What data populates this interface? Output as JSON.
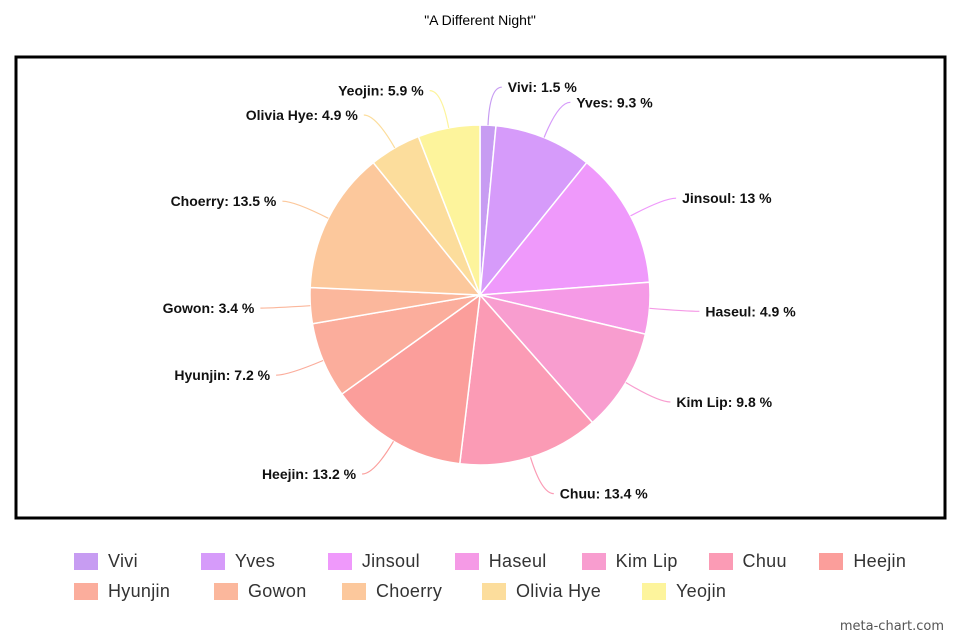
{
  "chart_data": {
    "type": "pie",
    "title": "\"A Different Night\"",
    "slices": [
      {
        "label": "Vivi",
        "value": 1.5,
        "color": "#c79cf2",
        "display": "Vivi: 1.5 %"
      },
      {
        "label": "Yves",
        "value": 9.3,
        "color": "#d69bfa",
        "display": "Yves: 9.3 %"
      },
      {
        "label": "Jinsoul",
        "value": 13,
        "color": "#ef99fb",
        "display": "Jinsoul: 13 %"
      },
      {
        "label": "Haseul",
        "value": 4.9,
        "color": "#f59ae6",
        "display": "Haseul: 4.9 %"
      },
      {
        "label": "Kim Lip",
        "value": 9.8,
        "color": "#f89dcf",
        "display": "Kim Lip: 9.8 %"
      },
      {
        "label": "Chuu",
        "value": 13.4,
        "color": "#fb9bb5",
        "display": "Chuu: 13.4 %"
      },
      {
        "label": "Heejin",
        "value": 13.2,
        "color": "#fb9e9b",
        "display": "Heejin: 13.2 %"
      },
      {
        "label": "Hyunjin",
        "value": 7.2,
        "color": "#fbad9c",
        "display": "Hyunjin: 7.2 %"
      },
      {
        "label": "Gowon",
        "value": 3.4,
        "color": "#fbb79c",
        "display": "Gowon: 3.4 %"
      },
      {
        "label": "Choerry",
        "value": 13.5,
        "color": "#fcc89c",
        "display": "Choerry: 13.5 %"
      },
      {
        "label": "Olivia Hye",
        "value": 4.9,
        "color": "#fcdd9c",
        "display": "Olivia Hye: 4.9 %"
      },
      {
        "label": "Yeojin",
        "value": 5.9,
        "color": "#fdf49c",
        "display": "Yeojin: 5.9 %"
      }
    ],
    "legend_position": "bottom"
  },
  "watermark": "meta-chart.com"
}
